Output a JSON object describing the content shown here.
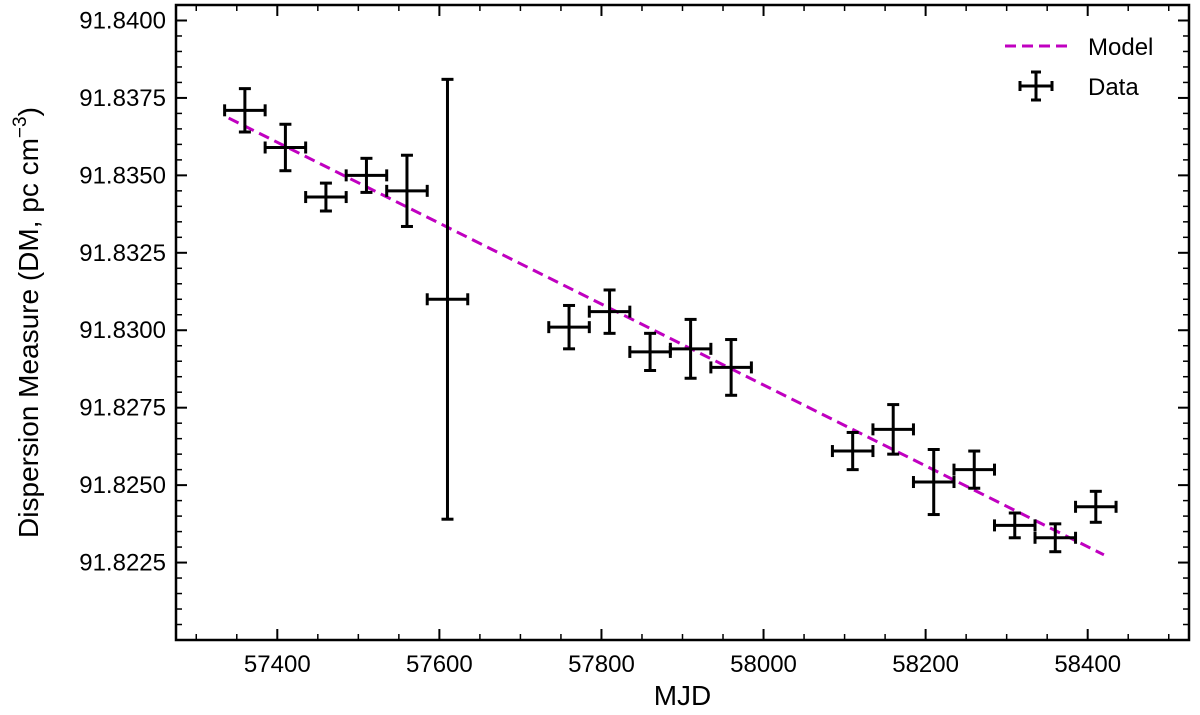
{
  "chart_data": {
    "type": "scatter",
    "title": "",
    "xlabel": "MJD",
    "ylabel": "Dispersion Measure (DM, pc cm",
    "ylabel_superscript": "−3",
    "ylabel_suffix": ")",
    "xlim": [
      57275,
      58525
    ],
    "ylim": [
      91.82,
      91.8405
    ],
    "xticks": [
      57400,
      57600,
      57800,
      58000,
      58200,
      58400
    ],
    "yticks": [
      91.8225,
      91.825,
      91.8275,
      91.83,
      91.8325,
      91.835,
      91.8375,
      91.84
    ],
    "xtick_labels": [
      "57400",
      "57600",
      "57800",
      "58000",
      "58200",
      "58400"
    ],
    "ytick_labels": [
      "91.8225",
      "91.8250",
      "91.8275",
      "91.8300",
      "91.8325",
      "91.8350",
      "91.8375",
      "91.8400"
    ],
    "grid": false,
    "legend_position": "top-right",
    "series": [
      {
        "name": "Model",
        "kind": "line",
        "style": "dashed",
        "color": "#c000c0",
        "x": [
          57340,
          58420
        ],
        "y": [
          91.83685,
          91.82275
        ]
      },
      {
        "name": "Data",
        "kind": "errorbar",
        "color": "#000000",
        "points": [
          {
            "x": 57360,
            "y": 91.8371,
            "xerr": 25,
            "yerr": 0.0007
          },
          {
            "x": 57410,
            "y": 91.8359,
            "xerr": 25,
            "yerr": 0.00075
          },
          {
            "x": 57460,
            "y": 91.8343,
            "xerr": 25,
            "yerr": 0.00045
          },
          {
            "x": 57510,
            "y": 91.835,
            "xerr": 25,
            "yerr": 0.00055
          },
          {
            "x": 57560,
            "y": 91.8345,
            "xerr": 25,
            "yerr": 0.00115
          },
          {
            "x": 57610,
            "y": 91.831,
            "xerr": 25,
            "yerr": 0.0071
          },
          {
            "x": 57760,
            "y": 91.8301,
            "xerr": 25,
            "yerr": 0.0007
          },
          {
            "x": 57810,
            "y": 91.8306,
            "xerr": 25,
            "yerr": 0.0007
          },
          {
            "x": 57860,
            "y": 91.8293,
            "xerr": 25,
            "yerr": 0.0006
          },
          {
            "x": 57910,
            "y": 91.8294,
            "xerr": 25,
            "yerr": 0.00095
          },
          {
            "x": 57960,
            "y": 91.8288,
            "xerr": 25,
            "yerr": 0.0009
          },
          {
            "x": 58110,
            "y": 91.8261,
            "xerr": 25,
            "yerr": 0.0006
          },
          {
            "x": 58160,
            "y": 91.8268,
            "xerr": 25,
            "yerr": 0.0008
          },
          {
            "x": 58210,
            "y": 91.8251,
            "xerr": 25,
            "yerr": 0.00105
          },
          {
            "x": 58260,
            "y": 91.8255,
            "xerr": 25,
            "yerr": 0.0006
          },
          {
            "x": 58310,
            "y": 91.8237,
            "xerr": 25,
            "yerr": 0.0004
          },
          {
            "x": 58360,
            "y": 91.8233,
            "xerr": 25,
            "yerr": 0.00045
          },
          {
            "x": 58410,
            "y": 91.8243,
            "xerr": 25,
            "yerr": 0.0005
          }
        ]
      }
    ]
  }
}
